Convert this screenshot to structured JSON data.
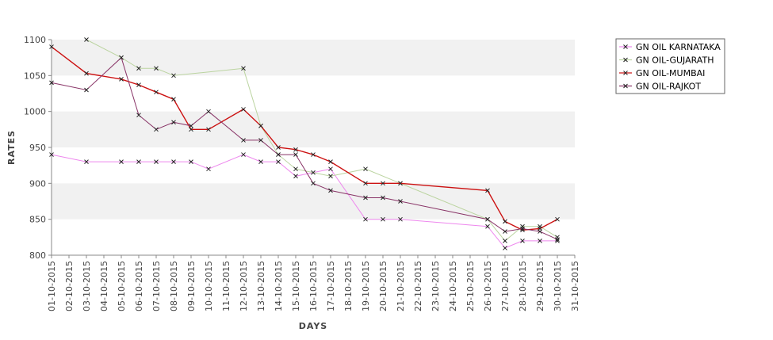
{
  "chart_data": {
    "type": "line",
    "xlabel": "DAYS",
    "ylabel": "RATES",
    "ylim": [
      800,
      1100
    ],
    "y_ticks": [
      800,
      850,
      900,
      950,
      1000,
      1050,
      1100
    ],
    "grid": "horizontal alternating bands",
    "legend_position": "top-right",
    "x": [
      "01-10-2015",
      "02-10-2015",
      "03-10-2015",
      "04-10-2015",
      "05-10-2015",
      "06-10-2015",
      "07-10-2015",
      "08-10-2015",
      "09-10-2015",
      "10-10-2015",
      "11-10-2015",
      "12-10-2015",
      "13-10-2015",
      "14-10-2015",
      "15-10-2015",
      "16-10-2015",
      "17-10-2015",
      "18-10-2015",
      "19-10-2015",
      "20-10-2015",
      "21-10-2015",
      "22-10-2015",
      "23-10-2015",
      "24-10-2015",
      "25-10-2015",
      "26-10-2015",
      "27-10-2015",
      "28-10-2015",
      "29-10-2015",
      "30-10-2015",
      "31-10-2015"
    ],
    "series": [
      {
        "name": "GN OIL KARNATAKA",
        "color": "#ee88ee",
        "points": [
          [
            "01-10-2015",
            940
          ],
          [
            "03-10-2015",
            930
          ],
          [
            "05-10-2015",
            930
          ],
          [
            "06-10-2015",
            930
          ],
          [
            "07-10-2015",
            930
          ],
          [
            "08-10-2015",
            930
          ],
          [
            "09-10-2015",
            930
          ],
          [
            "10-10-2015",
            920
          ],
          [
            "12-10-2015",
            940
          ],
          [
            "13-10-2015",
            930
          ],
          [
            "14-10-2015",
            930
          ],
          [
            "15-10-2015",
            910
          ],
          [
            "17-10-2015",
            920
          ],
          [
            "19-10-2015",
            850
          ],
          [
            "20-10-2015",
            850
          ],
          [
            "21-10-2015",
            850
          ],
          [
            "26-10-2015",
            840
          ],
          [
            "27-10-2015",
            810
          ],
          [
            "28-10-2015",
            820
          ],
          [
            "29-10-2015",
            820
          ],
          [
            "30-10-2015",
            820
          ]
        ]
      },
      {
        "name": "GN OIL-GUJARATH",
        "color": "#bbd4a0",
        "points": [
          [
            "03-10-2015",
            1100
          ],
          [
            "05-10-2015",
            1075
          ],
          [
            "06-10-2015",
            1060
          ],
          [
            "07-10-2015",
            1060
          ],
          [
            "08-10-2015",
            1050
          ],
          [
            "12-10-2015",
            1060
          ],
          [
            "13-10-2015",
            980
          ],
          [
            "14-10-2015",
            940
          ],
          [
            "15-10-2015",
            920
          ],
          [
            "16-10-2015",
            915
          ],
          [
            "17-10-2015",
            910
          ],
          [
            "19-10-2015",
            920
          ],
          [
            "21-10-2015",
            900
          ],
          [
            "26-10-2015",
            850
          ],
          [
            "27-10-2015",
            820
          ],
          [
            "28-10-2015",
            840
          ],
          [
            "29-10-2015",
            840
          ],
          [
            "30-10-2015",
            825
          ]
        ]
      },
      {
        "name": "GN OIL-MUMBAI",
        "color": "#cc1111",
        "points": [
          [
            "01-10-2015",
            1090
          ],
          [
            "03-10-2015",
            1053
          ],
          [
            "05-10-2015",
            1045
          ],
          [
            "06-10-2015",
            1037
          ],
          [
            "07-10-2015",
            1027
          ],
          [
            "08-10-2015",
            1017
          ],
          [
            "09-10-2015",
            975
          ],
          [
            "10-10-2015",
            975
          ],
          [
            "12-10-2015",
            1003
          ],
          [
            "13-10-2015",
            980
          ],
          [
            "14-10-2015",
            950
          ],
          [
            "15-10-2015",
            947
          ],
          [
            "16-10-2015",
            940
          ],
          [
            "17-10-2015",
            930
          ],
          [
            "19-10-2015",
            900
          ],
          [
            "20-10-2015",
            900
          ],
          [
            "21-10-2015",
            900
          ],
          [
            "26-10-2015",
            890
          ],
          [
            "27-10-2015",
            847
          ],
          [
            "28-10-2015",
            835
          ],
          [
            "29-10-2015",
            837
          ],
          [
            "30-10-2015",
            850
          ]
        ]
      },
      {
        "name": "GN OIL-RAJKOT",
        "color": "#883366",
        "points": [
          [
            "01-10-2015",
            1040
          ],
          [
            "03-10-2015",
            1030
          ],
          [
            "05-10-2015",
            1075
          ],
          [
            "06-10-2015",
            995
          ],
          [
            "07-10-2015",
            975
          ],
          [
            "08-10-2015",
            985
          ],
          [
            "09-10-2015",
            980
          ],
          [
            "10-10-2015",
            1000
          ],
          [
            "12-10-2015",
            960
          ],
          [
            "13-10-2015",
            960
          ],
          [
            "14-10-2015",
            940
          ],
          [
            "15-10-2015",
            940
          ],
          [
            "16-10-2015",
            900
          ],
          [
            "17-10-2015",
            890
          ],
          [
            "19-10-2015",
            880
          ],
          [
            "20-10-2015",
            880
          ],
          [
            "21-10-2015",
            875
          ],
          [
            "26-10-2015",
            850
          ],
          [
            "27-10-2015",
            833
          ],
          [
            "28-10-2015",
            837
          ],
          [
            "29-10-2015",
            833
          ],
          [
            "30-10-2015",
            822
          ]
        ]
      }
    ]
  }
}
